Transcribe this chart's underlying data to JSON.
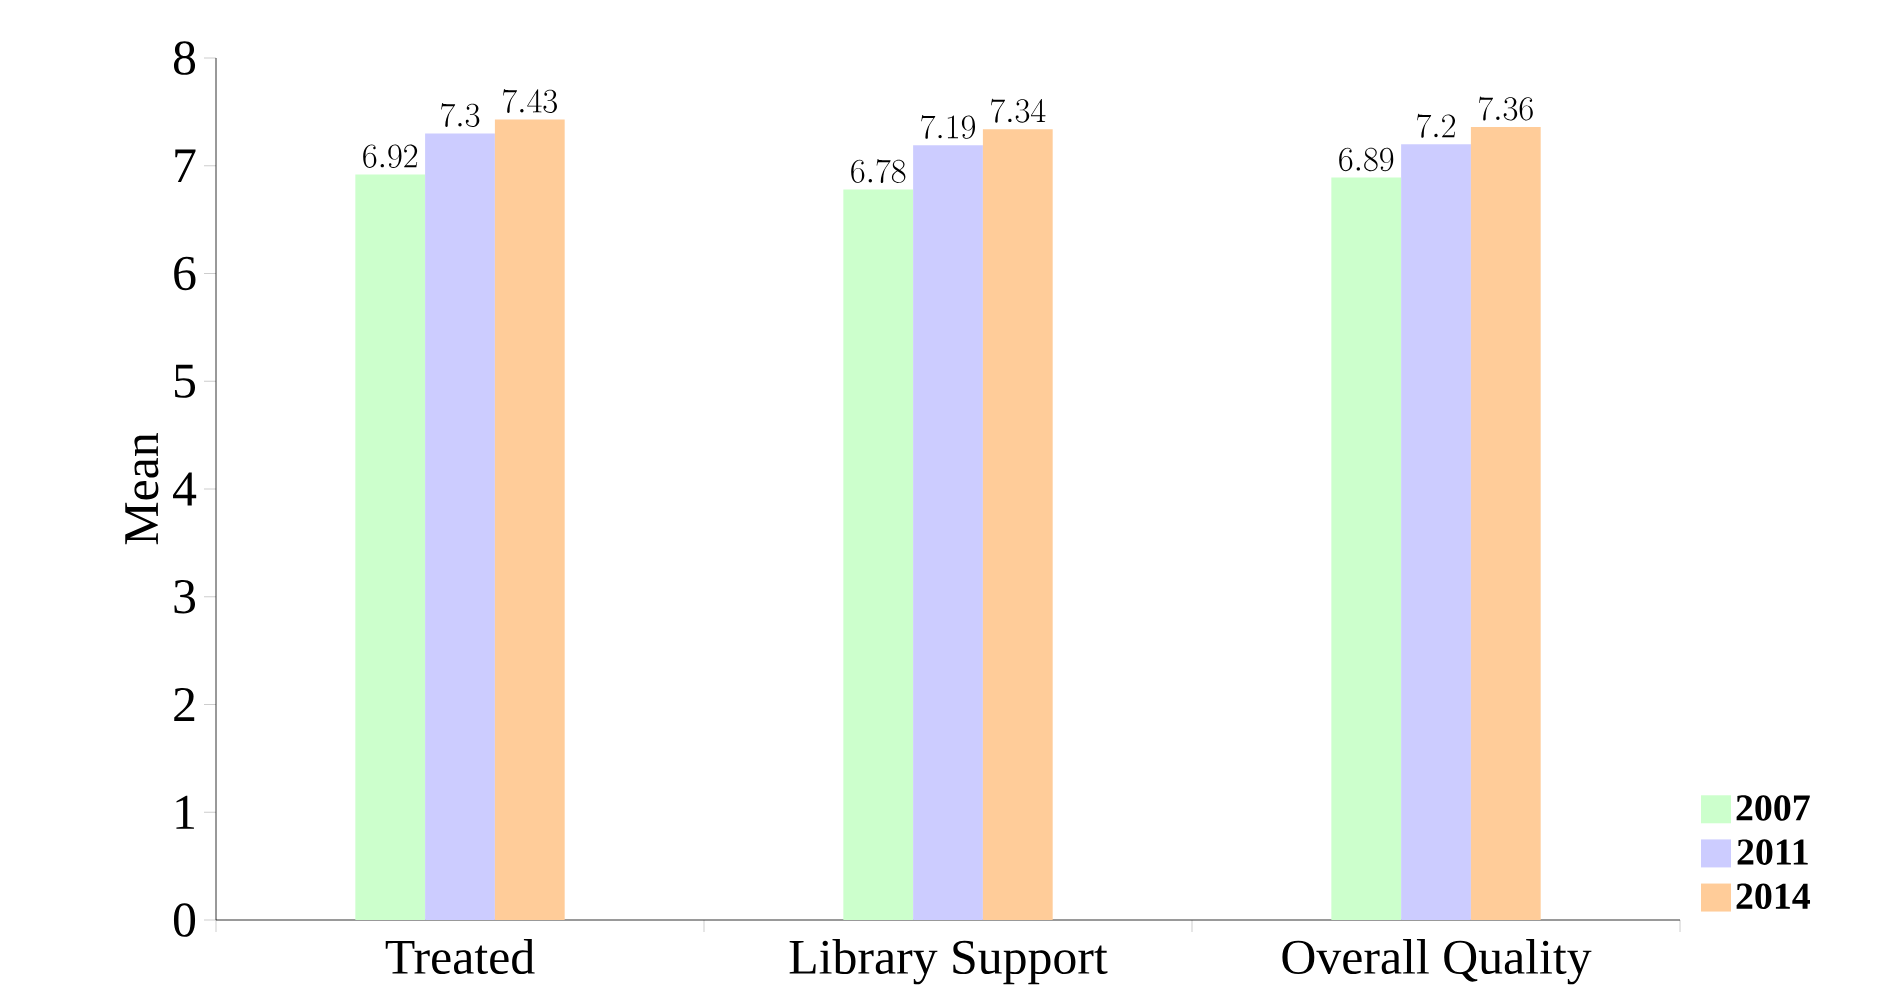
{
  "chart_data": {
    "type": "bar",
    "categories": [
      "Treated",
      "Library Support",
      "Overall Quality"
    ],
    "series": [
      {
        "name": "2007",
        "color": "#ccffcc",
        "values": [
          6.92,
          6.78,
          6.89
        ]
      },
      {
        "name": "2011",
        "color": "#ccccff",
        "values": [
          7.3,
          7.19,
          7.2
        ]
      },
      {
        "name": "2014",
        "color": "#ffcc99",
        "values": [
          7.43,
          7.34,
          7.36
        ]
      }
    ],
    "ylabel": "Mean",
    "ylim": [
      0,
      8
    ],
    "yticks": [
      0,
      1,
      2,
      3,
      4,
      5,
      6,
      7,
      8
    ],
    "data_labels": true,
    "legend": "bottom right"
  }
}
